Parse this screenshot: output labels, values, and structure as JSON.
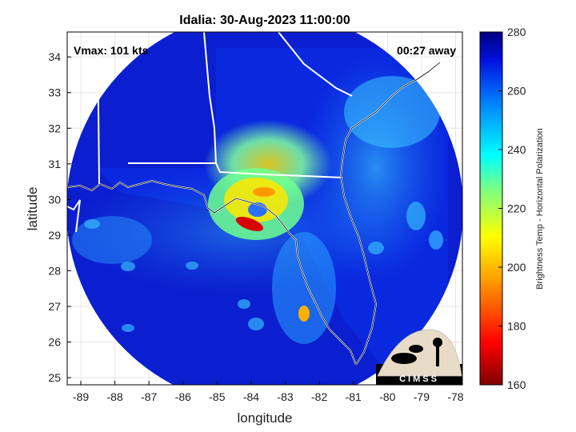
{
  "title": "Idalia: 30-Aug-2023 11:00:00",
  "annotation_left": "Vmax: 101 kts",
  "annotation_right": "00:27 away",
  "xlabel": "longitude",
  "ylabel": "latitude",
  "x_ticks": [
    "-89",
    "-88",
    "-87",
    "-86",
    "-85",
    "-84",
    "-83",
    "-82",
    "-81",
    "-80",
    "-79",
    "-78"
  ],
  "y_ticks": [
    "25",
    "26",
    "27",
    "28",
    "29",
    "30",
    "31",
    "32",
    "33",
    "34"
  ],
  "colorbar": {
    "label": "Brightness Temp - Horizontal Polarization",
    "ticks": [
      "160",
      "180",
      "200",
      "220",
      "240",
      "260",
      "280"
    ],
    "range": [
      160,
      280
    ]
  },
  "logo_text": "CIMSS",
  "map": {
    "lon_range": [
      -89.4,
      -77.8
    ],
    "lat_range": [
      24.8,
      34.7
    ],
    "storm_center": {
      "lon": -84.2,
      "lat": 29.6
    }
  }
}
